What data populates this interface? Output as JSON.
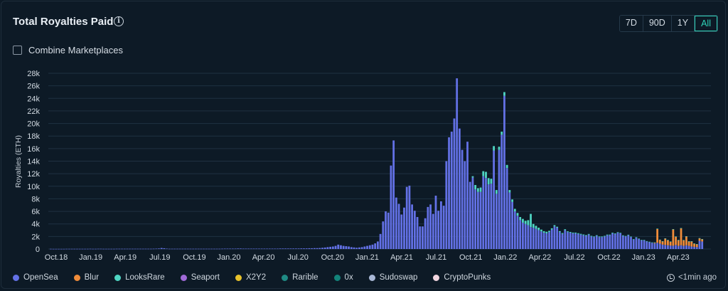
{
  "header": {
    "title": "Total Royalties Paid",
    "info_icon": "info-icon"
  },
  "ranges": [
    {
      "label": "7D",
      "active": false
    },
    {
      "label": "90D",
      "active": false
    },
    {
      "label": "1Y",
      "active": false
    },
    {
      "label": "All",
      "active": true
    }
  ],
  "combine": {
    "label": "Combine Marketplaces",
    "checked": false
  },
  "legend": [
    {
      "name": "OpenSea",
      "color": "#6371e6"
    },
    {
      "name": "Blur",
      "color": "#f08c3a"
    },
    {
      "name": "LooksRare",
      "color": "#4fd6c3"
    },
    {
      "name": "Seaport",
      "color": "#a06ad8"
    },
    {
      "name": "X2Y2",
      "color": "#e8c22b"
    },
    {
      "name": "Rarible",
      "color": "#1f8a84"
    },
    {
      "name": "0x",
      "color": "#13837a"
    },
    {
      "name": "Sudoswap",
      "color": "#a9b8d6"
    },
    {
      "name": "CryptoPunks",
      "color": "#f2d6e0"
    }
  ],
  "updated": {
    "text": "<1min ago",
    "icon": "clock-icon"
  },
  "chart_data": {
    "type": "bar",
    "stacked": true,
    "title": "Total Royalties Paid",
    "ylabel": "Royalties (ETH)",
    "xlabel": "",
    "ylim": [
      0,
      28000
    ],
    "yticks": [
      0,
      2000,
      4000,
      6000,
      8000,
      10000,
      12000,
      14000,
      16000,
      18000,
      20000,
      22000,
      24000,
      26000,
      28000
    ],
    "ytick_labels": [
      "0",
      "2k",
      "4k",
      "6k",
      "8k",
      "10k",
      "12k",
      "14k",
      "16k",
      "18k",
      "20k",
      "22k",
      "24k",
      "26k",
      "28k"
    ],
    "xtick_labels": [
      "Oct.18",
      "Jan.19",
      "Apr.19",
      "Jul.19",
      "Oct.19",
      "Jan.20",
      "Apr.20",
      "Jul.20",
      "Oct.20",
      "Jan.21",
      "Apr.21",
      "Jul.21",
      "Oct.21",
      "Jan.22",
      "Apr.22",
      "Jul.22",
      "Oct.22",
      "Jan.23",
      "Apr.23"
    ],
    "grid": true,
    "legend_position": "bottom",
    "x_interval": "weekly",
    "x_start": "2018-10",
    "series": [
      {
        "name": "OpenSea",
        "color": "#6371e6",
        "values": [
          30,
          20,
          20,
          20,
          20,
          20,
          30,
          30,
          30,
          30,
          30,
          30,
          30,
          30,
          30,
          40,
          30,
          30,
          40,
          40,
          30,
          30,
          30,
          30,
          30,
          40,
          40,
          40,
          40,
          40,
          40,
          40,
          40,
          40,
          40,
          40,
          40,
          40,
          40,
          50,
          60,
          80,
          160,
          120,
          60,
          40,
          40,
          40,
          40,
          40,
          40,
          40,
          40,
          40,
          40,
          40,
          40,
          40,
          40,
          40,
          40,
          40,
          40,
          40,
          40,
          50,
          60,
          60,
          60,
          60,
          60,
          80,
          80,
          60,
          60,
          60,
          60,
          60,
          60,
          60,
          60,
          60,
          60,
          60,
          60,
          60,
          60,
          80,
          80,
          80,
          80,
          80,
          80,
          80,
          80,
          100,
          100,
          100,
          120,
          120,
          140,
          140,
          160,
          200,
          240,
          300,
          350,
          400,
          500,
          700,
          600,
          500,
          450,
          400,
          300,
          250,
          200,
          250,
          300,
          400,
          500,
          600,
          700,
          900,
          1200,
          2400,
          4400,
          6000,
          5800,
          13300,
          17300,
          8200,
          7200,
          5500,
          6600,
          9900,
          10100,
          7100,
          6100,
          5100,
          3600,
          3600,
          4900,
          6700,
          7100,
          5600,
          8500,
          6100,
          7600,
          6900,
          14000,
          17800,
          18700,
          20800,
          27200,
          19200,
          15800,
          14000,
          17100,
          10700,
          11400,
          9500,
          9100,
          9100,
          11600,
          11300,
          10300,
          10400,
          15700,
          8800,
          15800,
          18200,
          24400,
          12900,
          9000,
          7500,
          6000,
          5300,
          4600,
          4200,
          4000,
          3800,
          3500,
          3400,
          3200,
          3000,
          2800,
          2600,
          2500,
          2700,
          3100,
          3600,
          3400,
          2700,
          2400,
          3000,
          2700,
          2600,
          2500,
          2500,
          2400,
          2300,
          2200,
          2100,
          2300,
          2000,
          1900,
          2100,
          1900,
          1900,
          2000,
          2200,
          2200,
          2500,
          2400,
          2600,
          2500,
          2100,
          2000,
          2200,
          1900,
          1500,
          1800,
          1600,
          1400,
          1400,
          1200,
          1100,
          1000,
          900,
          1000,
          850,
          700,
          650,
          600,
          550,
          520,
          650,
          500,
          600,
          500,
          600,
          500,
          400,
          350,
          300,
          1300,
          1200
        ]
      },
      {
        "name": "Blur",
        "color": "#f08c3a",
        "values": [
          0,
          0,
          0,
          0,
          0,
          0,
          0,
          0,
          0,
          0,
          0,
          0,
          0,
          0,
          0,
          0,
          0,
          0,
          0,
          0,
          0,
          0,
          0,
          0,
          0,
          0,
          0,
          0,
          0,
          0,
          0,
          0,
          0,
          0,
          0,
          0,
          0,
          0,
          0,
          0,
          0,
          0,
          0,
          0,
          0,
          0,
          0,
          0,
          0,
          0,
          0,
          0,
          0,
          0,
          0,
          0,
          0,
          0,
          0,
          0,
          0,
          0,
          0,
          0,
          0,
          0,
          0,
          0,
          0,
          0,
          0,
          0,
          0,
          0,
          0,
          0,
          0,
          0,
          0,
          0,
          0,
          0,
          0,
          0,
          0,
          0,
          0,
          0,
          0,
          0,
          0,
          0,
          0,
          0,
          0,
          0,
          0,
          0,
          0,
          0,
          0,
          0,
          0,
          0,
          0,
          0,
          0,
          0,
          0,
          0,
          0,
          0,
          0,
          0,
          0,
          0,
          0,
          0,
          0,
          0,
          0,
          0,
          0,
          0,
          0,
          0,
          0,
          0,
          0,
          0,
          0,
          0,
          0,
          0,
          0,
          0,
          0,
          0,
          0,
          0,
          0,
          0,
          0,
          0,
          0,
          0,
          0,
          0,
          0,
          0,
          0,
          0,
          0,
          0,
          0,
          0,
          0,
          0,
          0,
          0,
          0,
          0,
          0,
          0,
          0,
          0,
          0,
          0,
          0,
          0,
          0,
          0,
          0,
          0,
          0,
          0,
          0,
          0,
          0,
          0,
          0,
          0,
          0,
          0,
          0,
          0,
          0,
          0,
          0,
          0,
          0,
          0,
          0,
          0,
          0,
          0,
          0,
          0,
          0,
          0,
          0,
          0,
          0,
          0,
          0,
          0,
          0,
          0,
          0,
          0,
          0,
          0,
          0,
          0,
          0,
          0,
          0,
          0,
          0,
          0,
          0,
          0,
          0,
          0,
          0,
          0,
          0,
          0,
          0,
          100,
          2200,
          600,
          500,
          1000,
          800,
          600,
          2600,
          1300,
          900,
          2700,
          900,
          1400,
          700,
          800,
          500,
          450,
          400,
          350,
          300,
          250,
          200,
          200,
          150,
          150,
          200,
          150,
          150,
          100,
          100,
          300,
          300
        ]
      },
      {
        "name": "LooksRare",
        "color": "#4fd6c3",
        "values": [
          0,
          0,
          0,
          0,
          0,
          0,
          0,
          0,
          0,
          0,
          0,
          0,
          0,
          0,
          0,
          0,
          0,
          0,
          0,
          0,
          0,
          0,
          0,
          0,
          0,
          0,
          0,
          0,
          0,
          0,
          0,
          0,
          0,
          0,
          0,
          0,
          0,
          0,
          0,
          0,
          0,
          0,
          0,
          0,
          0,
          0,
          0,
          0,
          0,
          0,
          0,
          0,
          0,
          0,
          0,
          0,
          0,
          0,
          0,
          0,
          0,
          0,
          0,
          0,
          0,
          0,
          0,
          0,
          0,
          0,
          0,
          0,
          0,
          0,
          0,
          0,
          0,
          0,
          0,
          0,
          0,
          0,
          0,
          0,
          0,
          0,
          0,
          0,
          0,
          0,
          0,
          0,
          0,
          0,
          0,
          0,
          0,
          0,
          0,
          0,
          0,
          0,
          0,
          0,
          0,
          0,
          0,
          0,
          0,
          0,
          0,
          0,
          0,
          0,
          0,
          0,
          0,
          0,
          0,
          0,
          0,
          0,
          0,
          0,
          0,
          0,
          0,
          0,
          0,
          0,
          0,
          0,
          0,
          0,
          0,
          0,
          0,
          0,
          0,
          0,
          0,
          0,
          0,
          0,
          0,
          0,
          0,
          0,
          0,
          0,
          0,
          0,
          0,
          0,
          0,
          0,
          0,
          0,
          0,
          0,
          200,
          700,
          600,
          700,
          800,
          1000,
          1000,
          800,
          700,
          600,
          500,
          500,
          600,
          500,
          400,
          400,
          400,
          450,
          500,
          600,
          500,
          800,
          2100,
          600,
          500,
          400,
          300,
          250,
          250,
          200,
          200,
          200,
          150,
          150,
          150,
          150,
          120,
          120,
          120,
          120,
          120,
          120,
          120,
          120,
          100,
          100,
          100,
          100,
          100,
          100,
          100,
          100,
          100,
          100,
          100,
          80,
          80,
          80,
          80,
          80,
          80,
          80,
          80,
          60,
          60,
          60,
          60,
          60,
          60,
          60,
          60,
          50,
          50,
          50,
          50,
          50,
          50,
          50,
          50,
          40,
          40,
          40,
          40,
          40,
          40,
          40,
          40,
          40,
          40,
          30,
          30,
          30,
          30,
          30,
          30,
          30,
          30,
          30,
          30,
          30,
          30,
          20,
          20,
          20,
          20,
          20,
          20,
          20,
          20,
          20
        ]
      }
    ]
  }
}
